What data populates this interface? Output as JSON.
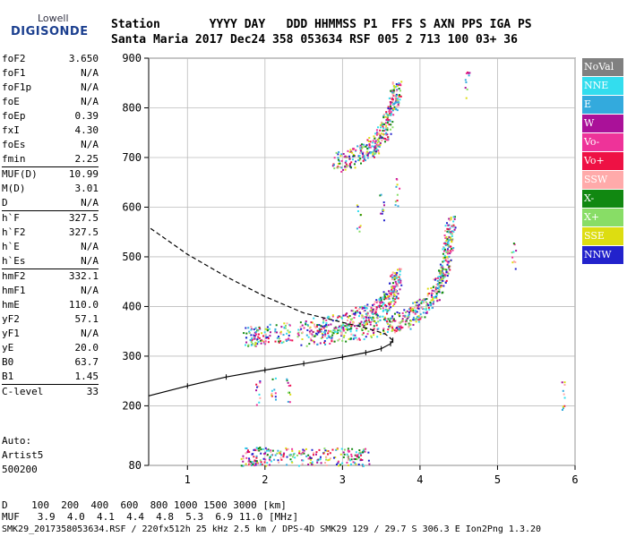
{
  "logo": {
    "line1": "Lowell",
    "line2": "DIGISONDE"
  },
  "header": {
    "row1": "Station       YYYY DAY   DDD HHMMSS P1  FFS S AXN PPS IGA PS",
    "row2": "Santa Maria 2017 Dec24 358 053634 RSF 005 2 713 100 03+ 36"
  },
  "params": [
    {
      "name": "foF2",
      "value": "3.650",
      "sep": false
    },
    {
      "name": "foF1",
      "value": "N/A",
      "sep": false
    },
    {
      "name": "foF1p",
      "value": "N/A",
      "sep": false
    },
    {
      "name": "foE",
      "value": "N/A",
      "sep": false
    },
    {
      "name": "foEp",
      "value": "0.39",
      "sep": false
    },
    {
      "name": "fxI",
      "value": "4.30",
      "sep": false
    },
    {
      "name": "foEs",
      "value": "N/A",
      "sep": false
    },
    {
      "name": "fmin",
      "value": "2.25",
      "sep": false
    },
    {
      "name": "MUF(D)",
      "value": "10.99",
      "sep": true
    },
    {
      "name": "M(D)",
      "value": "3.01",
      "sep": false
    },
    {
      "name": "D",
      "value": "N/A",
      "sep": false
    },
    {
      "name": "h`F",
      "value": "327.5",
      "sep": true
    },
    {
      "name": "h`F2",
      "value": "327.5",
      "sep": false
    },
    {
      "name": "h`E",
      "value": "N/A",
      "sep": false
    },
    {
      "name": "h`Es",
      "value": "N/A",
      "sep": false
    },
    {
      "name": "hmF2",
      "value": "332.1",
      "sep": true
    },
    {
      "name": "hmF1",
      "value": "N/A",
      "sep": false
    },
    {
      "name": "hmE",
      "value": "110.0",
      "sep": false
    },
    {
      "name": "yF2",
      "value": "57.1",
      "sep": false
    },
    {
      "name": "yF1",
      "value": "N/A",
      "sep": false
    },
    {
      "name": "yE",
      "value": "20.0",
      "sep": false
    },
    {
      "name": "B0",
      "value": "63.7",
      "sep": false
    },
    {
      "name": "B1",
      "value": "1.45",
      "sep": false
    },
    {
      "name": "C-level",
      "value": "33",
      "sep": true
    }
  ],
  "auto": {
    "line1": "Auto:",
    "line2": "Artist5",
    "line3": "500200"
  },
  "bottom": {
    "d_row": "D    100  200  400  600  800 1000 1500 3000 [km]",
    "muf_row": "MUF   3.9  4.0  4.1  4.4  4.8  5.3  6.9 11.0 [MHz]",
    "footer": "SMK29_2017358053634.RSF / 220fx512h 25 kHz 2.5 km / DPS-4D SMK29 129 / 29.7 S 306.3 E Ion2Png 1.3.20"
  },
  "legend": [
    {
      "label": "NoVal",
      "color": "#808080"
    },
    {
      "label": "NNE",
      "color": "#33ddee"
    },
    {
      "label": "E",
      "color": "#33aadd"
    },
    {
      "label": "W",
      "color": "#aa1199"
    },
    {
      "label": "Vo-",
      "color": "#ee3399"
    },
    {
      "label": "Vo+",
      "color": "#ee1144"
    },
    {
      "label": "SSW",
      "color": "#ffaaaa"
    },
    {
      "label": "X-",
      "color": "#118811"
    },
    {
      "label": "X+",
      "color": "#88dd66"
    },
    {
      "label": "SSE",
      "color": "#dddd11"
    },
    {
      "label": "NNW",
      "color": "#2222cc"
    }
  ],
  "chart_data": {
    "type": "scatter",
    "xlim": [
      0.5,
      6.0
    ],
    "ylim": [
      80,
      900
    ],
    "x_ticks": [
      1,
      2,
      3,
      4,
      5,
      6
    ],
    "y_ticks": [
      80,
      200,
      300,
      400,
      500,
      600,
      700,
      800,
      900
    ],
    "x_tick_labels": [
      "1",
      "2",
      "3",
      "4",
      "5",
      "6"
    ],
    "y_tick_labels": [
      "80",
      "200",
      "300",
      "400",
      "500",
      "600",
      "700",
      "800",
      "900"
    ],
    "grid": true,
    "profile_solid": [
      [
        0.5,
        220
      ],
      [
        1.0,
        240
      ],
      [
        1.5,
        258
      ],
      [
        2.0,
        272
      ],
      [
        2.5,
        285
      ],
      [
        3.0,
        298
      ],
      [
        3.3,
        307
      ],
      [
        3.5,
        315
      ],
      [
        3.62,
        325
      ],
      [
        3.65,
        332
      ]
    ],
    "profile_dashed": [
      [
        3.65,
        332
      ],
      [
        3.55,
        345
      ],
      [
        3.3,
        357
      ],
      [
        3.0,
        368
      ],
      [
        2.5,
        387
      ],
      [
        2.0,
        420
      ],
      [
        1.5,
        460
      ],
      [
        1.0,
        505
      ],
      [
        0.5,
        560
      ]
    ],
    "traces": [
      {
        "name": "F2 o-trace",
        "points": [
          [
            1.75,
            340
          ],
          [
            2.0,
            345
          ],
          [
            2.5,
            355
          ],
          [
            3.0,
            370
          ],
          [
            3.3,
            385
          ],
          [
            3.5,
            400
          ],
          [
            3.65,
            430
          ],
          [
            3.7,
            470
          ]
        ]
      },
      {
        "name": "F2 x-trace",
        "points": [
          [
            2.5,
            340
          ],
          [
            3.0,
            348
          ],
          [
            3.5,
            360
          ],
          [
            3.8,
            375
          ],
          [
            4.0,
            395
          ],
          [
            4.2,
            430
          ],
          [
            4.3,
            470
          ],
          [
            4.35,
            520
          ],
          [
            4.4,
            580
          ]
        ]
      },
      {
        "name": "F2 second hop",
        "points": [
          [
            2.9,
            690
          ],
          [
            3.2,
            705
          ],
          [
            3.4,
            725
          ],
          [
            3.55,
            760
          ],
          [
            3.65,
            810
          ],
          [
            3.7,
            840
          ]
        ]
      },
      {
        "name": "Es / E layer",
        "points": [
          [
            1.7,
            100
          ],
          [
            2.0,
            98
          ],
          [
            2.5,
            97
          ],
          [
            3.0,
            96
          ],
          [
            3.3,
            96
          ]
        ]
      },
      {
        "name": "Weak echoes",
        "points": [
          [
            1.9,
            225
          ],
          [
            2.1,
            230
          ],
          [
            2.3,
            228
          ],
          [
            3.2,
            580
          ],
          [
            3.5,
            600
          ],
          [
            3.7,
            630
          ],
          [
            4.6,
            850
          ],
          [
            5.2,
            500
          ],
          [
            5.85,
            220
          ]
        ]
      }
    ]
  }
}
